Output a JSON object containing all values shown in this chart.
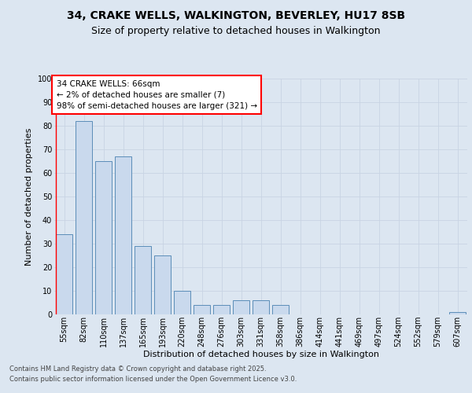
{
  "title1": "34, CRAKE WELLS, WALKINGTON, BEVERLEY, HU17 8SB",
  "title2": "Size of property relative to detached houses in Walkington",
  "xlabel": "Distribution of detached houses by size in Walkington",
  "ylabel": "Number of detached properties",
  "categories": [
    "55sqm",
    "82sqm",
    "110sqm",
    "137sqm",
    "165sqm",
    "193sqm",
    "220sqm",
    "248sqm",
    "276sqm",
    "303sqm",
    "331sqm",
    "358sqm",
    "386sqm",
    "414sqm",
    "441sqm",
    "469sqm",
    "497sqm",
    "524sqm",
    "552sqm",
    "579sqm",
    "607sqm"
  ],
  "values": [
    34,
    82,
    65,
    67,
    29,
    25,
    10,
    4,
    4,
    6,
    6,
    4,
    0,
    0,
    0,
    0,
    0,
    0,
    0,
    0,
    1
  ],
  "bar_color": "#c9d9ed",
  "bar_edge_color": "#5b8db8",
  "annotation_box_text": "34 CRAKE WELLS: 66sqm\n← 2% of detached houses are smaller (7)\n98% of semi-detached houses are larger (321) →",
  "ylim": [
    0,
    100
  ],
  "yticks": [
    0,
    10,
    20,
    30,
    40,
    50,
    60,
    70,
    80,
    90,
    100
  ],
  "grid_color": "#c8d4e3",
  "bg_color": "#dce6f1",
  "footer1": "Contains HM Land Registry data © Crown copyright and database right 2025.",
  "footer2": "Contains public sector information licensed under the Open Government Licence v3.0.",
  "title1_fontsize": 10,
  "title2_fontsize": 9,
  "xlabel_fontsize": 8,
  "ylabel_fontsize": 8,
  "tick_fontsize": 7,
  "footer_fontsize": 6,
  "ann_fontsize": 7.5
}
